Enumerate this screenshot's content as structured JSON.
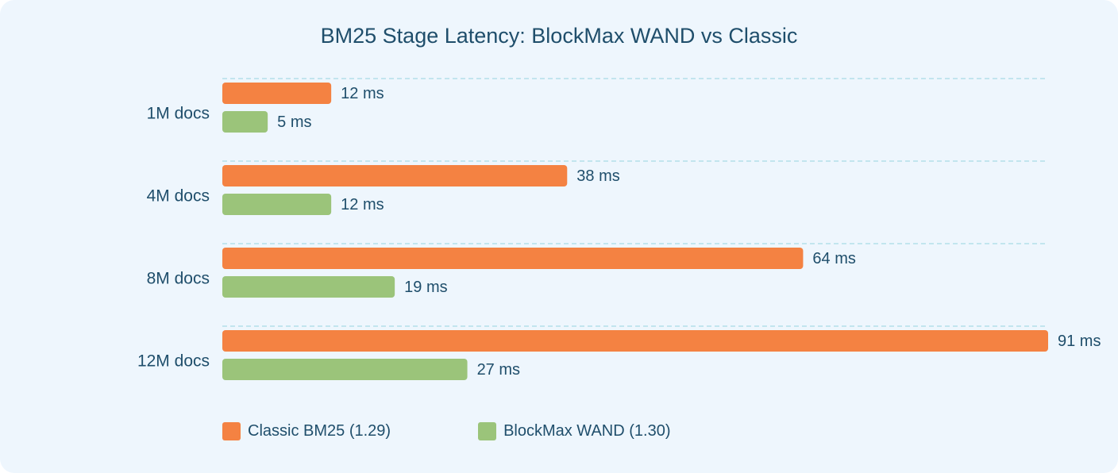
{
  "chart_data": {
    "type": "bar",
    "orientation": "horizontal",
    "title": "BM25 Stage Latency: BlockMax WAND vs Classic",
    "categories": [
      "1M docs",
      "4M docs",
      "8M docs",
      "12M docs"
    ],
    "series": [
      {
        "name": "Classic BM25 (1.29)",
        "color": "#f48242",
        "values": [
          12,
          38,
          64,
          91
        ],
        "labels": [
          "12 ms",
          "38 ms",
          "64 ms",
          "91 ms"
        ]
      },
      {
        "name": "BlockMax WAND (1.30)",
        "color": "#9bc47a",
        "values": [
          5,
          12,
          19,
          27
        ],
        "labels": [
          "5 ms",
          "12 ms",
          "19 ms",
          "27 ms"
        ]
      }
    ],
    "xlim": [
      0,
      91
    ],
    "grid": true,
    "legend_position": "bottom-left"
  }
}
